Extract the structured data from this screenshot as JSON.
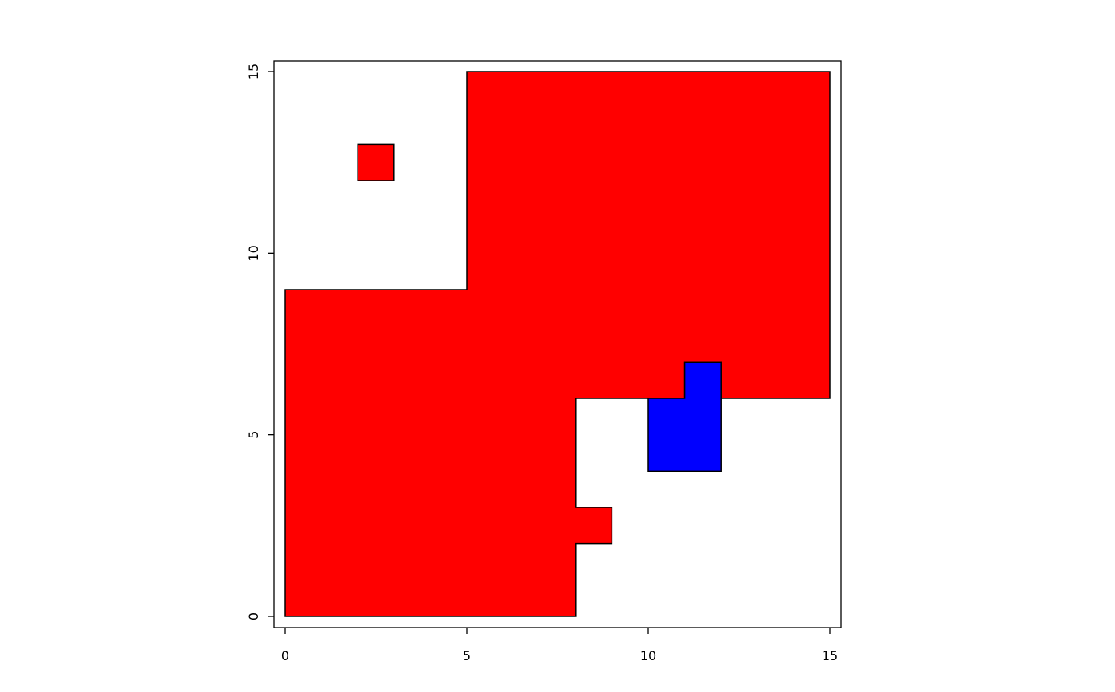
{
  "chart_data": {
    "type": "polygon",
    "title": "",
    "xlabel": "",
    "ylabel": "",
    "xlim": [
      0,
      15
    ],
    "ylim": [
      0,
      15
    ],
    "grid": false,
    "x_ticks": [
      "0",
      "5",
      "10",
      "15"
    ],
    "y_ticks": [
      "0",
      "5",
      "10",
      "15"
    ],
    "polygons": [
      {
        "fill": "#ff0000",
        "stroke": "#000000",
        "points": [
          [
            0,
            0
          ],
          [
            8,
            0
          ],
          [
            8,
            2
          ],
          [
            9,
            2
          ],
          [
            9,
            3
          ],
          [
            8,
            3
          ],
          [
            8,
            6
          ],
          [
            11,
            6
          ],
          [
            11,
            7
          ],
          [
            12,
            7
          ],
          [
            12,
            6
          ],
          [
            15,
            6
          ],
          [
            15,
            15
          ],
          [
            5,
            15
          ],
          [
            5,
            9
          ],
          [
            0,
            9
          ]
        ]
      },
      {
        "fill": "#ff0000",
        "stroke": "#000000",
        "points": [
          [
            2,
            12
          ],
          [
            3,
            12
          ],
          [
            3,
            13
          ],
          [
            2,
            13
          ]
        ]
      },
      {
        "fill": "#0000ff",
        "stroke": "#000000",
        "points": [
          [
            10,
            4
          ],
          [
            12,
            4
          ],
          [
            12,
            7
          ],
          [
            11,
            7
          ],
          [
            11,
            6
          ],
          [
            10,
            6
          ]
        ]
      }
    ]
  }
}
